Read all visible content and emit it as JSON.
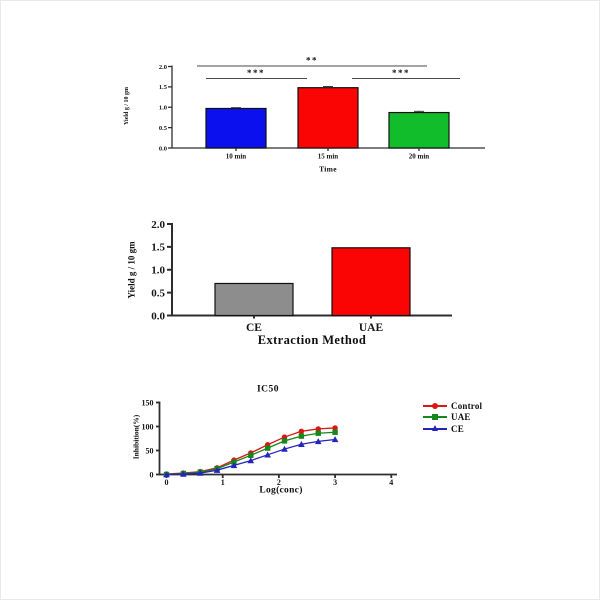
{
  "page": {
    "background": "#ffffff"
  },
  "chart_data": [
    {
      "id": "yield-vs-time",
      "type": "bar",
      "title": "",
      "xlabel": "Time",
      "ylabel": "Yield g / 10 gm",
      "categories": [
        "10 min",
        "15 min",
        "20 min"
      ],
      "values": [
        0.97,
        1.48,
        0.87
      ],
      "errors": [
        0.02,
        0.03,
        0.03
      ],
      "bar_colors": [
        "#0a10ee",
        "#fb0404",
        "#11bd2b"
      ],
      "ylim": [
        0,
        2
      ],
      "yticks": [
        "0.0",
        "0.5",
        "1.0",
        "1.5",
        "2.0"
      ],
      "grid": false,
      "significance": [
        {
          "label": "**",
          "between": [
            "10 min",
            "20 min"
          ]
        },
        {
          "label": "***",
          "between": [
            "10 min",
            "15 min"
          ]
        },
        {
          "label": "***",
          "between": [
            "15 min",
            "20 min"
          ]
        }
      ]
    },
    {
      "id": "yield-vs-extraction-method",
      "type": "bar",
      "title": "",
      "xlabel": "Extraction Method",
      "ylabel": "Yield g / 10 gm",
      "categories": [
        "CE",
        "UAE"
      ],
      "values": [
        0.7,
        1.48
      ],
      "bar_colors": [
        "#8d8d8d",
        "#fb0404"
      ],
      "ylim": [
        0,
        2
      ],
      "yticks": [
        "0.0",
        "0.5",
        "1.0",
        "1.5",
        "2.0"
      ],
      "grid": false
    },
    {
      "id": "ic50-dose-response",
      "type": "line",
      "title": "IC50",
      "xlabel": "Log(conc)",
      "ylabel": "Inhibition(%)",
      "xlim": [
        0,
        4
      ],
      "ylim": [
        0,
        150
      ],
      "xticks": [
        "0",
        "1",
        "2",
        "3",
        "4"
      ],
      "yticks": [
        "0",
        "50",
        "100",
        "150"
      ],
      "x": [
        0,
        0.3,
        0.6,
        0.9,
        1.2,
        1.5,
        1.8,
        2.1,
        2.4,
        2.7,
        3.0
      ],
      "series": [
        {
          "name": "Control",
          "color": "#da1710",
          "marker": "circle",
          "values": [
            1,
            3,
            6,
            14,
            30,
            45,
            62,
            78,
            90,
            95,
            97
          ]
        },
        {
          "name": "UAE",
          "color": "#17861c",
          "marker": "square",
          "values": [
            0,
            2,
            5,
            12,
            26,
            40,
            55,
            70,
            80,
            86,
            88
          ]
        },
        {
          "name": "CE",
          "color": "#2424bd",
          "marker": "triangle",
          "values": [
            0,
            1,
            3,
            9,
            19,
            29,
            41,
            53,
            63,
            69,
            73
          ]
        }
      ],
      "legend_position": "right",
      "grid": false
    }
  ]
}
